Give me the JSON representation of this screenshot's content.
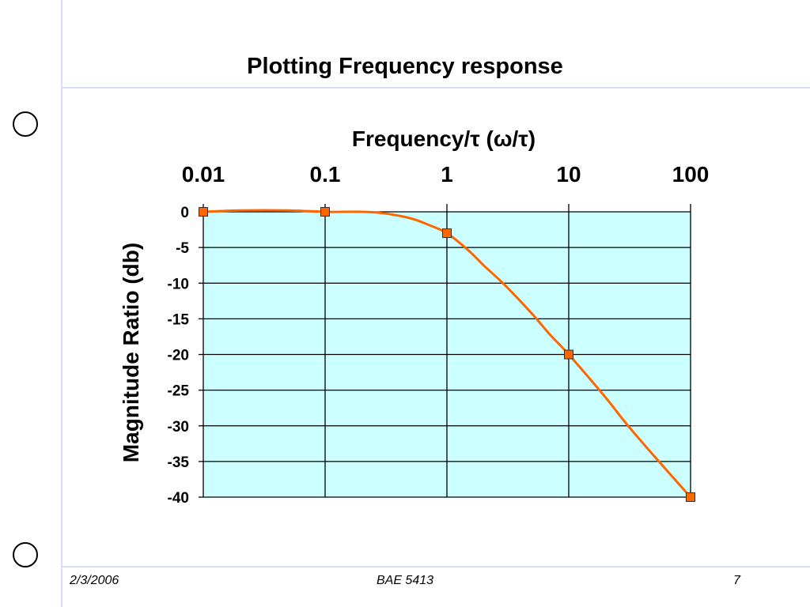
{
  "slide": {
    "title": "Plotting Frequency response"
  },
  "chart_data": {
    "type": "line",
    "xlabel": "Frequency/τ (ω/τ)",
    "ylabel": "Magnitude Ratio (db)",
    "x_scale": "log",
    "x_ticks": [
      "0.01",
      "0.1",
      "1",
      "10",
      "100"
    ],
    "y_ticks": [
      "0",
      "-5",
      "-10",
      "-15",
      "-20",
      "-25",
      "-30",
      "-35",
      "-40"
    ],
    "xlim": [
      0.01,
      100
    ],
    "ylim": [
      -40,
      0
    ],
    "grid": true,
    "plot_background": "#ccffff",
    "series": [
      {
        "color": "#ff6600",
        "marker_points": [
          [
            0.01,
            0
          ],
          [
            0.1,
            0
          ],
          [
            1,
            -3
          ],
          [
            10,
            -20
          ],
          [
            100,
            -40
          ]
        ],
        "curve": [
          [
            0.01,
            0
          ],
          [
            0.02,
            0.2
          ],
          [
            0.05,
            0.2
          ],
          [
            0.1,
            0
          ],
          [
            0.2,
            0
          ],
          [
            0.3,
            -0.2
          ],
          [
            0.5,
            -0.9
          ],
          [
            0.7,
            -1.8
          ],
          [
            1,
            -3
          ],
          [
            1.5,
            -5.4
          ],
          [
            2,
            -7.5
          ],
          [
            3,
            -10.3
          ],
          [
            5,
            -14.3
          ],
          [
            7,
            -17.2
          ],
          [
            10,
            -20
          ],
          [
            20,
            -26
          ],
          [
            30,
            -29.8
          ],
          [
            50,
            -34.2
          ],
          [
            100,
            -40
          ]
        ]
      }
    ]
  },
  "footer": {
    "date": "2/3/2006",
    "course": "BAE 5413",
    "page": "7"
  }
}
